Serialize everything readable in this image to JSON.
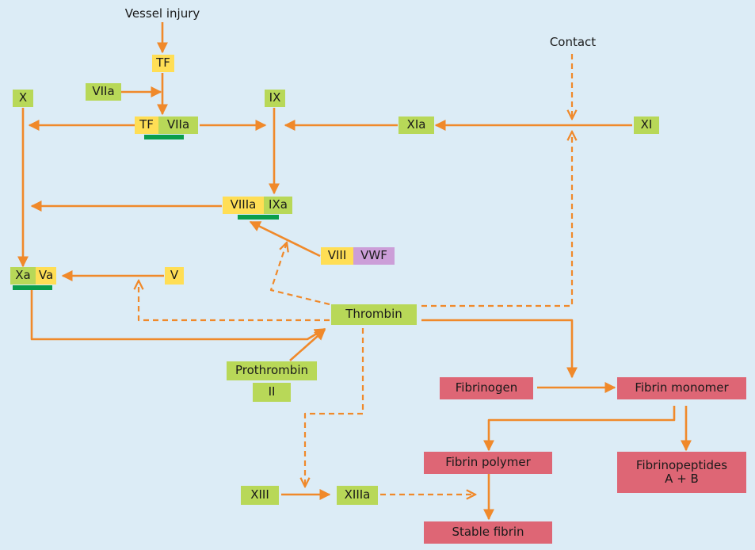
{
  "colors": {
    "background": "#dcecf6",
    "arrow": "#f0892a",
    "factor_green": "#b8d858",
    "factor_yellow": "#ffde55",
    "factor_purple": "#cc9ed8",
    "fibrin_red": "#de6675",
    "complex_bar": "#0a9e4c"
  },
  "nodes": {
    "vessel_injury": "Vessel injury",
    "tf": "TF",
    "viia": "VIIa",
    "tf_viia_tf": "TF",
    "tf_viia_viia": "VIIa",
    "x": "X",
    "ix": "IX",
    "contact": "Contact",
    "xia": "XIa",
    "xi": "XI",
    "viiia": "VIIIa",
    "ixa": "IXa",
    "viii": "VIII",
    "vwf": "VWF",
    "xa": "Xa",
    "va": "Va",
    "v": "V",
    "thrombin": "Thrombin",
    "prothrombin": "Prothrombin",
    "ii": "II",
    "fibrinogen": "Fibrinogen",
    "fibrin_monomer": "Fibrin monomer",
    "fibrin_polymer": "Fibrin polymer",
    "fibrinopeptides_line1": "Fibrinopeptides",
    "fibrinopeptides_line2": "A + B",
    "xiii": "XIII",
    "xiiia": "XIIIa",
    "stable_fibrin": "Stable fibrin"
  }
}
